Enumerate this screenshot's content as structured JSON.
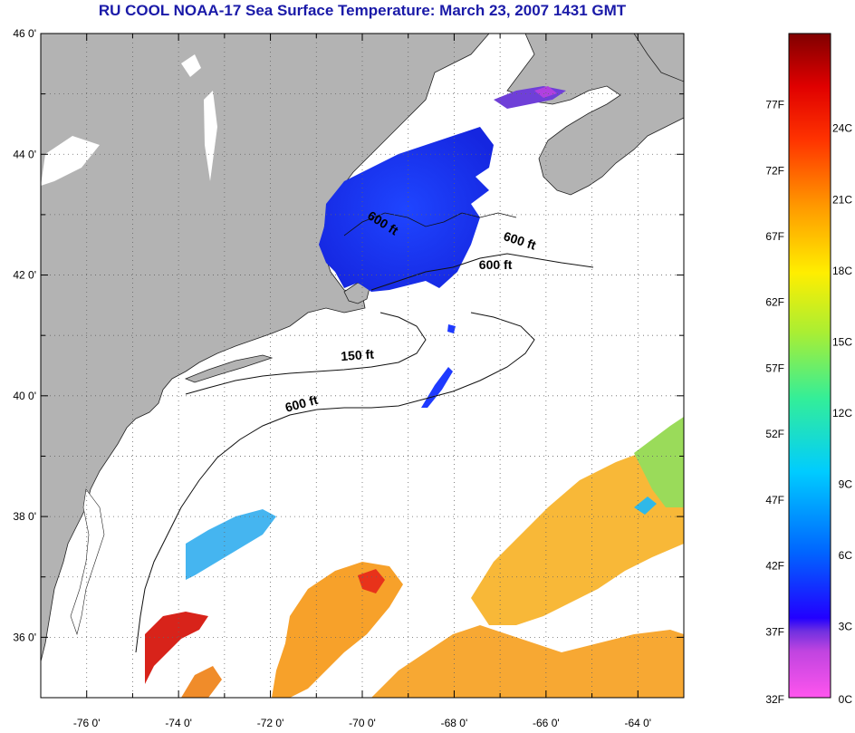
{
  "title": "RU COOL  NOAA-17  Sea Surface Temperature:  March 23, 2007 1431 GMT",
  "map": {
    "lon_range": [
      -77,
      -63
    ],
    "lat_range": [
      35,
      46
    ],
    "lon_ticks": [
      {
        "value": -76,
        "label": "-76 0'"
      },
      {
        "value": -74,
        "label": "-74 0'"
      },
      {
        "value": -72,
        "label": "-72 0'"
      },
      {
        "value": -70,
        "label": "-70 0'"
      },
      {
        "value": -68,
        "label": "-68 0'"
      },
      {
        "value": -66,
        "label": "-66 0'"
      },
      {
        "value": -64,
        "label": "-64 0'"
      }
    ],
    "lat_ticks": [
      {
        "value": 46,
        "label": "46 0'"
      },
      {
        "value": 44,
        "label": "44 0'"
      },
      {
        "value": 42,
        "label": "42 0'"
      },
      {
        "value": 40,
        "label": "40 0'"
      },
      {
        "value": 38,
        "label": "38 0'"
      },
      {
        "value": 36,
        "label": "36 0'"
      }
    ],
    "isobath_labels": [
      {
        "text": "600 ft",
        "lon": -69.6,
        "lat": 42.8,
        "rotate": 32
      },
      {
        "text": "600 ft",
        "lon": -66.6,
        "lat": 42.5,
        "rotate": 18
      },
      {
        "text": "600 ft",
        "lon": -67.1,
        "lat": 42.1,
        "rotate": 0
      },
      {
        "text": "150 ft",
        "lon": -70.1,
        "lat": 40.6,
        "rotate": -4
      },
      {
        "text": "600 ft",
        "lon": -71.3,
        "lat": 39.8,
        "rotate": -15
      }
    ],
    "land_color": "#b3b3b3",
    "water_color": "#ffffff"
  },
  "colorbar": {
    "fahrenheit_labels": [
      "77F",
      "72F",
      "67F",
      "62F",
      "57F",
      "52F",
      "47F",
      "42F",
      "37F",
      "32F"
    ],
    "fahrenheit_values": [
      77,
      72,
      67,
      62,
      57,
      52,
      47,
      42,
      37,
      32
    ],
    "celsius_labels": [
      "24C",
      "21C",
      "18C",
      "15C",
      "12C",
      "9C",
      "6C",
      "3C",
      "0C"
    ],
    "celsius_values": [
      24,
      21,
      18,
      15,
      12,
      9,
      6,
      3,
      0
    ],
    "min_c": 0,
    "max_c": 28,
    "colors": [
      "#ff55ee",
      "#b044e0",
      "#2200ff",
      "#0066ff",
      "#00ccff",
      "#33ee99",
      "#aaee33",
      "#ffee00",
      "#ff9900",
      "#ff3300",
      "#e00000",
      "#800000"
    ]
  }
}
